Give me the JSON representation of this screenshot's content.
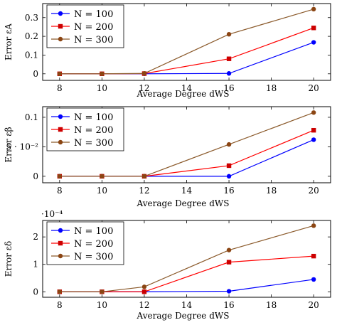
{
  "chart_data": [
    {
      "type": "line",
      "title": "",
      "ylabel": "Error εA",
      "xlabel": "Average Degree dWS",
      "x": [
        8,
        10,
        12,
        16,
        20
      ],
      "xlim": [
        7.2,
        20.8
      ],
      "ylim": [
        -0.035,
        0.375
      ],
      "yticks": [
        0,
        0.1,
        0.2,
        0.3
      ],
      "ytick_labels": [
        "0",
        "0.1",
        "0.2",
        "0.3"
      ],
      "exponent_label": "",
      "legend_position": "top-left",
      "series": [
        {
          "name": "N = 100",
          "values": [
            0,
            0,
            0,
            0.002,
            0.168
          ]
        },
        {
          "name": "N = 200",
          "values": [
            0,
            0,
            0.001,
            0.08,
            0.245
          ]
        },
        {
          "name": "N = 300",
          "values": [
            0,
            0,
            0.002,
            0.211,
            0.345
          ]
        }
      ]
    },
    {
      "type": "line",
      "title": "",
      "ylabel": "Error εβ",
      "xlabel": "Average Degree dWS",
      "x": [
        8,
        10,
        12,
        16,
        20
      ],
      "xlim": [
        7.2,
        20.8
      ],
      "ylim": [
        -0.011,
        0.118
      ],
      "yticks": [
        0,
        0.05,
        0.1
      ],
      "ytick_labels": [
        "0",
        "5 · 10⁻²",
        "0.1"
      ],
      "exponent_label": "",
      "legend_position": "top-left",
      "series": [
        {
          "name": "N = 100",
          "values": [
            0,
            0,
            0,
            0,
            0.062
          ]
        },
        {
          "name": "N = 200",
          "values": [
            0,
            0,
            0,
            0.018,
            0.078
          ]
        },
        {
          "name": "N = 300",
          "values": [
            0,
            0,
            0,
            0.054,
            0.108
          ]
        }
      ]
    },
    {
      "type": "line",
      "title": "",
      "ylabel": "Error εδ",
      "xlabel": "Average Degree dWS",
      "x": [
        8,
        10,
        12,
        16,
        20
      ],
      "xlim": [
        7.2,
        20.8
      ],
      "ylim": [
        -2e-05,
        0.00026
      ],
      "yticks": [
        0,
        0.0001,
        0.0002
      ],
      "ytick_labels": [
        "0",
        "1",
        "2"
      ],
      "exponent_label": "·10⁻⁴",
      "legend_position": "top-left",
      "series": [
        {
          "name": "N = 100",
          "values": [
            0,
            0,
            0,
            2e-06,
            4.5e-05
          ]
        },
        {
          "name": "N = 200",
          "values": [
            0,
            0,
            0,
            0.000108,
            0.00013
          ]
        },
        {
          "name": "N = 300",
          "values": [
            0,
            0,
            1.8e-05,
            0.000152,
            0.000241
          ]
        }
      ]
    }
  ],
  "colors": {
    "N = 100": "#0000ff",
    "N = 200": "#ff0000",
    "N = 300": "#8b5a2b",
    "N = 200 marker": "#cc0000",
    "N = 300 marker": "#8b4513"
  },
  "markers": {
    "N = 100": "circle",
    "N = 200": "square",
    "N = 300": "circle"
  }
}
